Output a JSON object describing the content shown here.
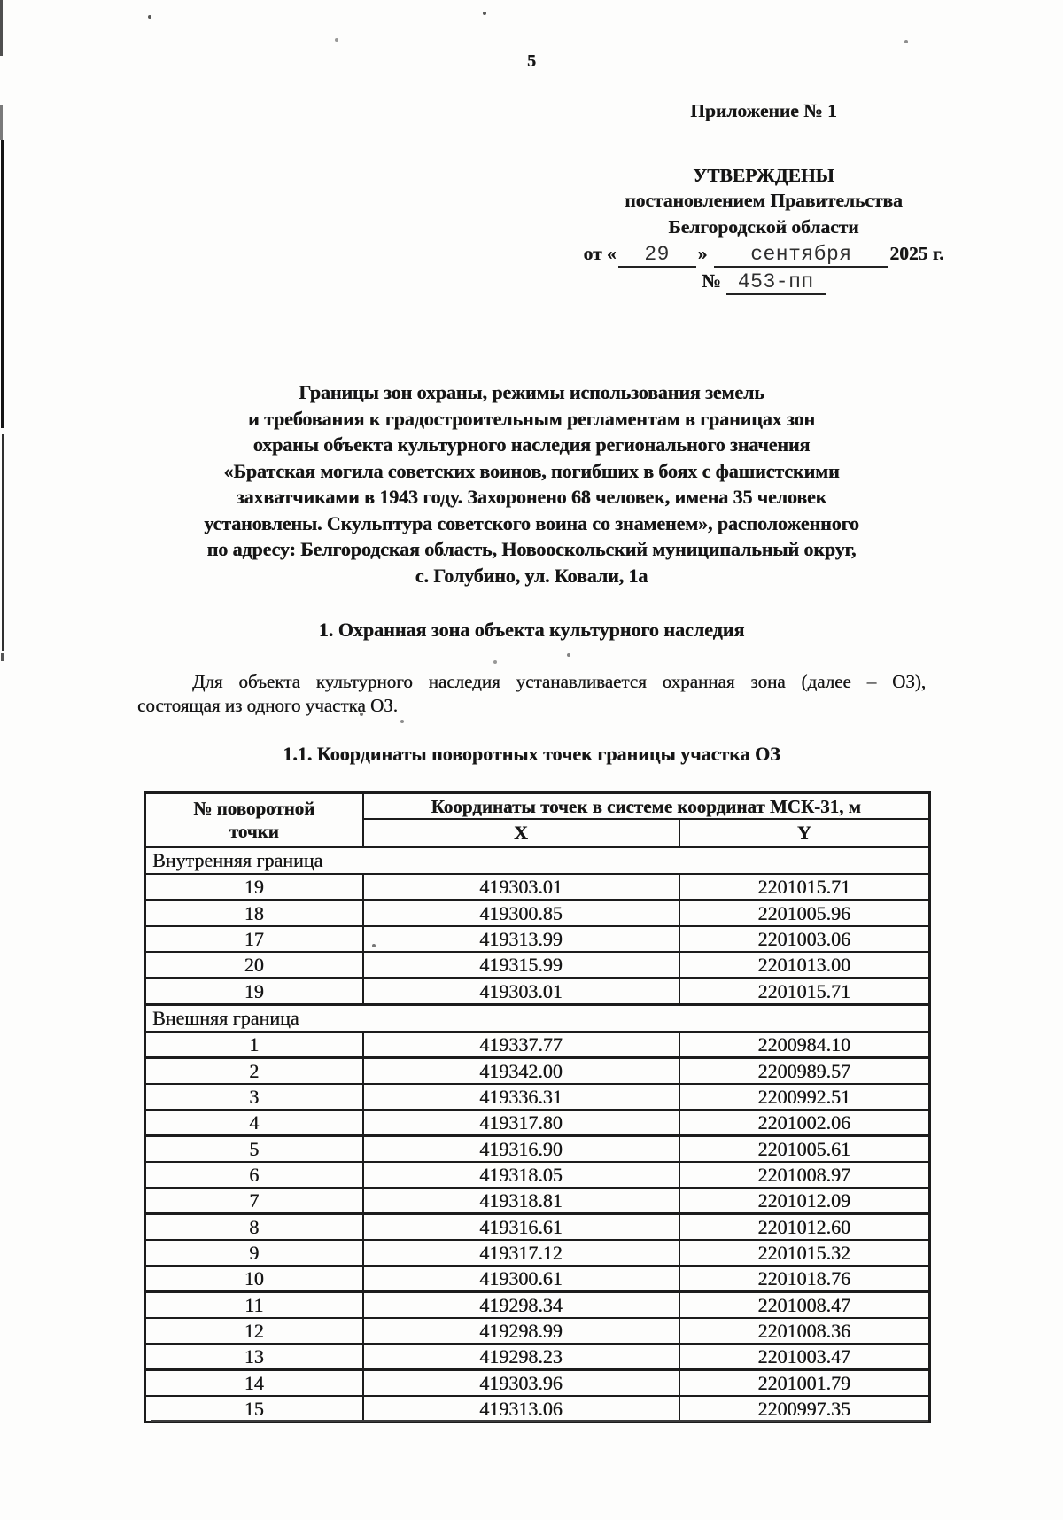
{
  "page_number": "5",
  "stamp": {
    "appendix": "Приложение № 1",
    "approved": "УТВЕРЖДЕНЫ",
    "approved_by_line1": "постановлением Правительства",
    "approved_by_line2": "Белгородской области",
    "date_prefix": "от «",
    "date_day": "29",
    "date_close_quote": "»",
    "date_month": "сентября",
    "date_year": "2025 г.",
    "doc_number_label": "№",
    "doc_number": "453-пп"
  },
  "title_lines": [
    "Границы зон охраны, режимы использования земель",
    "и требования к градостроительным регламентам в границах зон",
    "охраны объекта культурного наследия регионального значения",
    "«Братская могила советских воинов, погибших в боях с фашистскими",
    "захватчиками в 1943 году. Захоронено 68 человек, имена 35 человек",
    "установлены. Скульптура советского воина со знаменем», расположенного",
    "по адресу: Белгородская область, Новооскольский муниципальный округ,",
    "с. Голубино, ул. Ковали, 1а"
  ],
  "section_1": {
    "heading": "1. Охранная зона объекта культурного наследия",
    "body_line_1": "Для объекта культурного наследия устанавливается охранная зона (далее – ОЗ),",
    "body_line_2": "состоящая из одного участка ОЗ."
  },
  "section_1_1": {
    "heading": "1.1. Координаты поворотных точек границы участка ОЗ"
  },
  "coords_table": {
    "point_col_header_line1": "№ поворотной",
    "point_col_header_line2": "точки",
    "coords_header": "Координаты точек в системе координат МСК-31, м",
    "x_header": "X",
    "y_header": "Y",
    "sections": [
      {
        "label": "Внутренняя граница",
        "rows": [
          {
            "point": "19",
            "x": "419303.01",
            "y": "2201015.71"
          },
          {
            "point": "18",
            "x": "419300.85",
            "y": "2201005.96"
          },
          {
            "point": "17",
            "x": "419313.99",
            "y": "2201003.06"
          },
          {
            "point": "20",
            "x": "419315.99",
            "y": "2201013.00"
          },
          {
            "point": "19",
            "x": "419303.01",
            "y": "2201015.71"
          }
        ]
      },
      {
        "label": "Внешняя граница",
        "rows": [
          {
            "point": "1",
            "x": "419337.77",
            "y": "2200984.10"
          },
          {
            "point": "2",
            "x": "419342.00",
            "y": "2200989.57"
          },
          {
            "point": "3",
            "x": "419336.31",
            "y": "2200992.51"
          },
          {
            "point": "4",
            "x": "419317.80",
            "y": "2201002.06"
          },
          {
            "point": "5",
            "x": "419316.90",
            "y": "2201005.61"
          },
          {
            "point": "6",
            "x": "419318.05",
            "y": "2201008.97"
          },
          {
            "point": "7",
            "x": "419318.81",
            "y": "2201012.09"
          },
          {
            "point": "8",
            "x": "419316.61",
            "y": "2201012.60"
          },
          {
            "point": "9",
            "x": "419317.12",
            "y": "2201015.32"
          },
          {
            "point": "10",
            "x": "419300.61",
            "y": "2201018.76"
          },
          {
            "point": "11",
            "x": "419298.34",
            "y": "2201008.47"
          },
          {
            "point": "12",
            "x": "419298.99",
            "y": "2201008.36"
          },
          {
            "point": "13",
            "x": "419298.23",
            "y": "2201003.47"
          },
          {
            "point": "14",
            "x": "419303.96",
            "y": "2201001.79"
          },
          {
            "point": "15",
            "x": "419313.06",
            "y": "2200997.35"
          }
        ]
      }
    ]
  }
}
